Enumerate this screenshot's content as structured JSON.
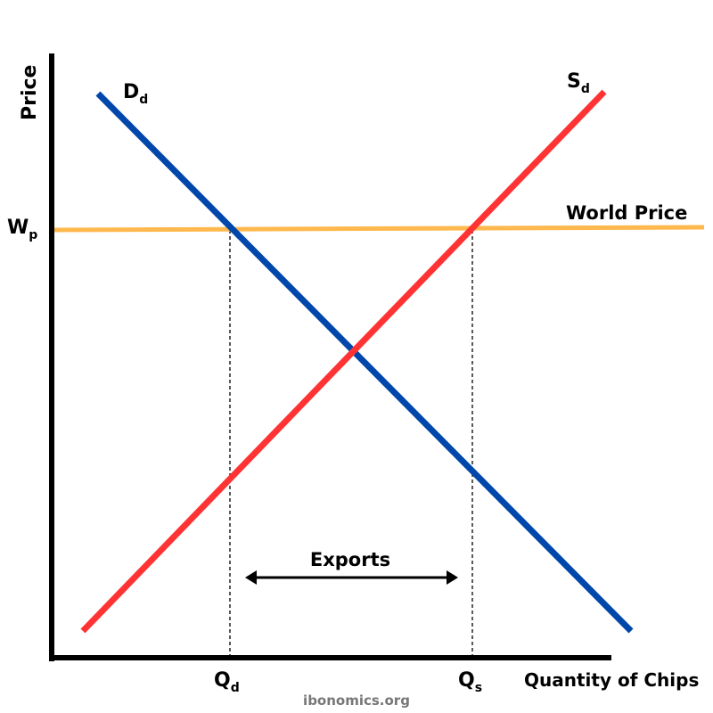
{
  "diagram": {
    "y_axis_label": "Price",
    "x_axis_label": "Quantity of Chips",
    "world_price_label": "World Price",
    "world_price_axis": {
      "main": "W",
      "sub": "p"
    },
    "demand_label": {
      "main": "D",
      "sub": "d"
    },
    "supply_label": {
      "main": "S",
      "sub": "d"
    },
    "qd_label": {
      "main": "Q",
      "sub": "d"
    },
    "qs_label": {
      "main": "Q",
      "sub": "s"
    },
    "exports_label": "Exports",
    "watermark": "ibonomics.org",
    "colors": {
      "demand": "#0047AB",
      "supply": "#FF3333",
      "world_price": "#FFB84D",
      "axes": "#000000",
      "watermark": "#777777"
    }
  }
}
